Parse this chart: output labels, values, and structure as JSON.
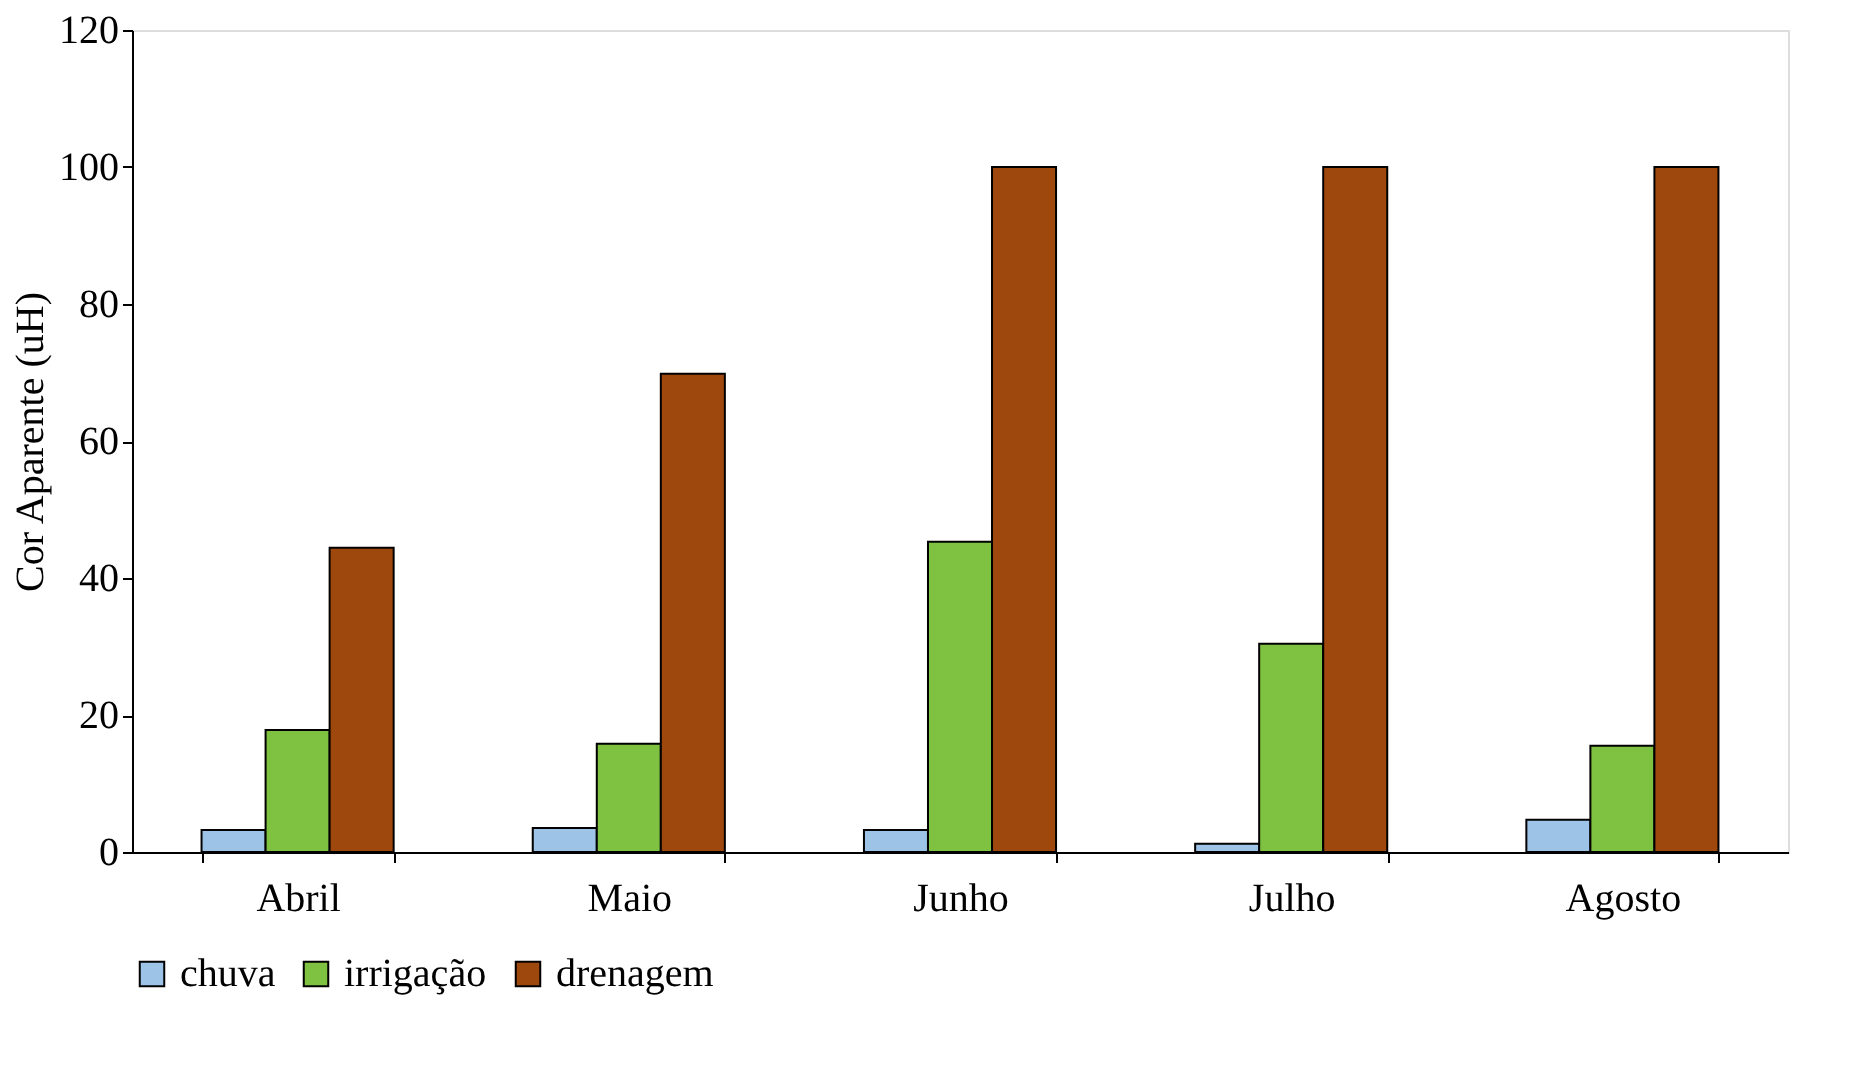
{
  "chart_data": {
    "type": "bar",
    "ylabel": "Cor Aparente (uH)",
    "categories": [
      "Abril",
      "Maio",
      "Junho",
      "Julho",
      "Agosto"
    ],
    "series": [
      {
        "name": "chuva",
        "color": "#9dc3e6",
        "values": [
          3.2,
          3.5,
          3.2,
          1.2,
          4.7
        ]
      },
      {
        "name": "irrigação",
        "color": "#7fc241",
        "values": [
          17.8,
          15.8,
          45.3,
          30.4,
          15.5
        ]
      },
      {
        "name": "drenagem",
        "color": "#9e480e",
        "values": [
          44.4,
          69.8,
          100,
          100,
          100
        ]
      }
    ],
    "ylim": [
      0,
      120
    ],
    "yticks": [
      0,
      20,
      40,
      60,
      80,
      100,
      120
    ],
    "grid": false,
    "legend": "bottom"
  }
}
